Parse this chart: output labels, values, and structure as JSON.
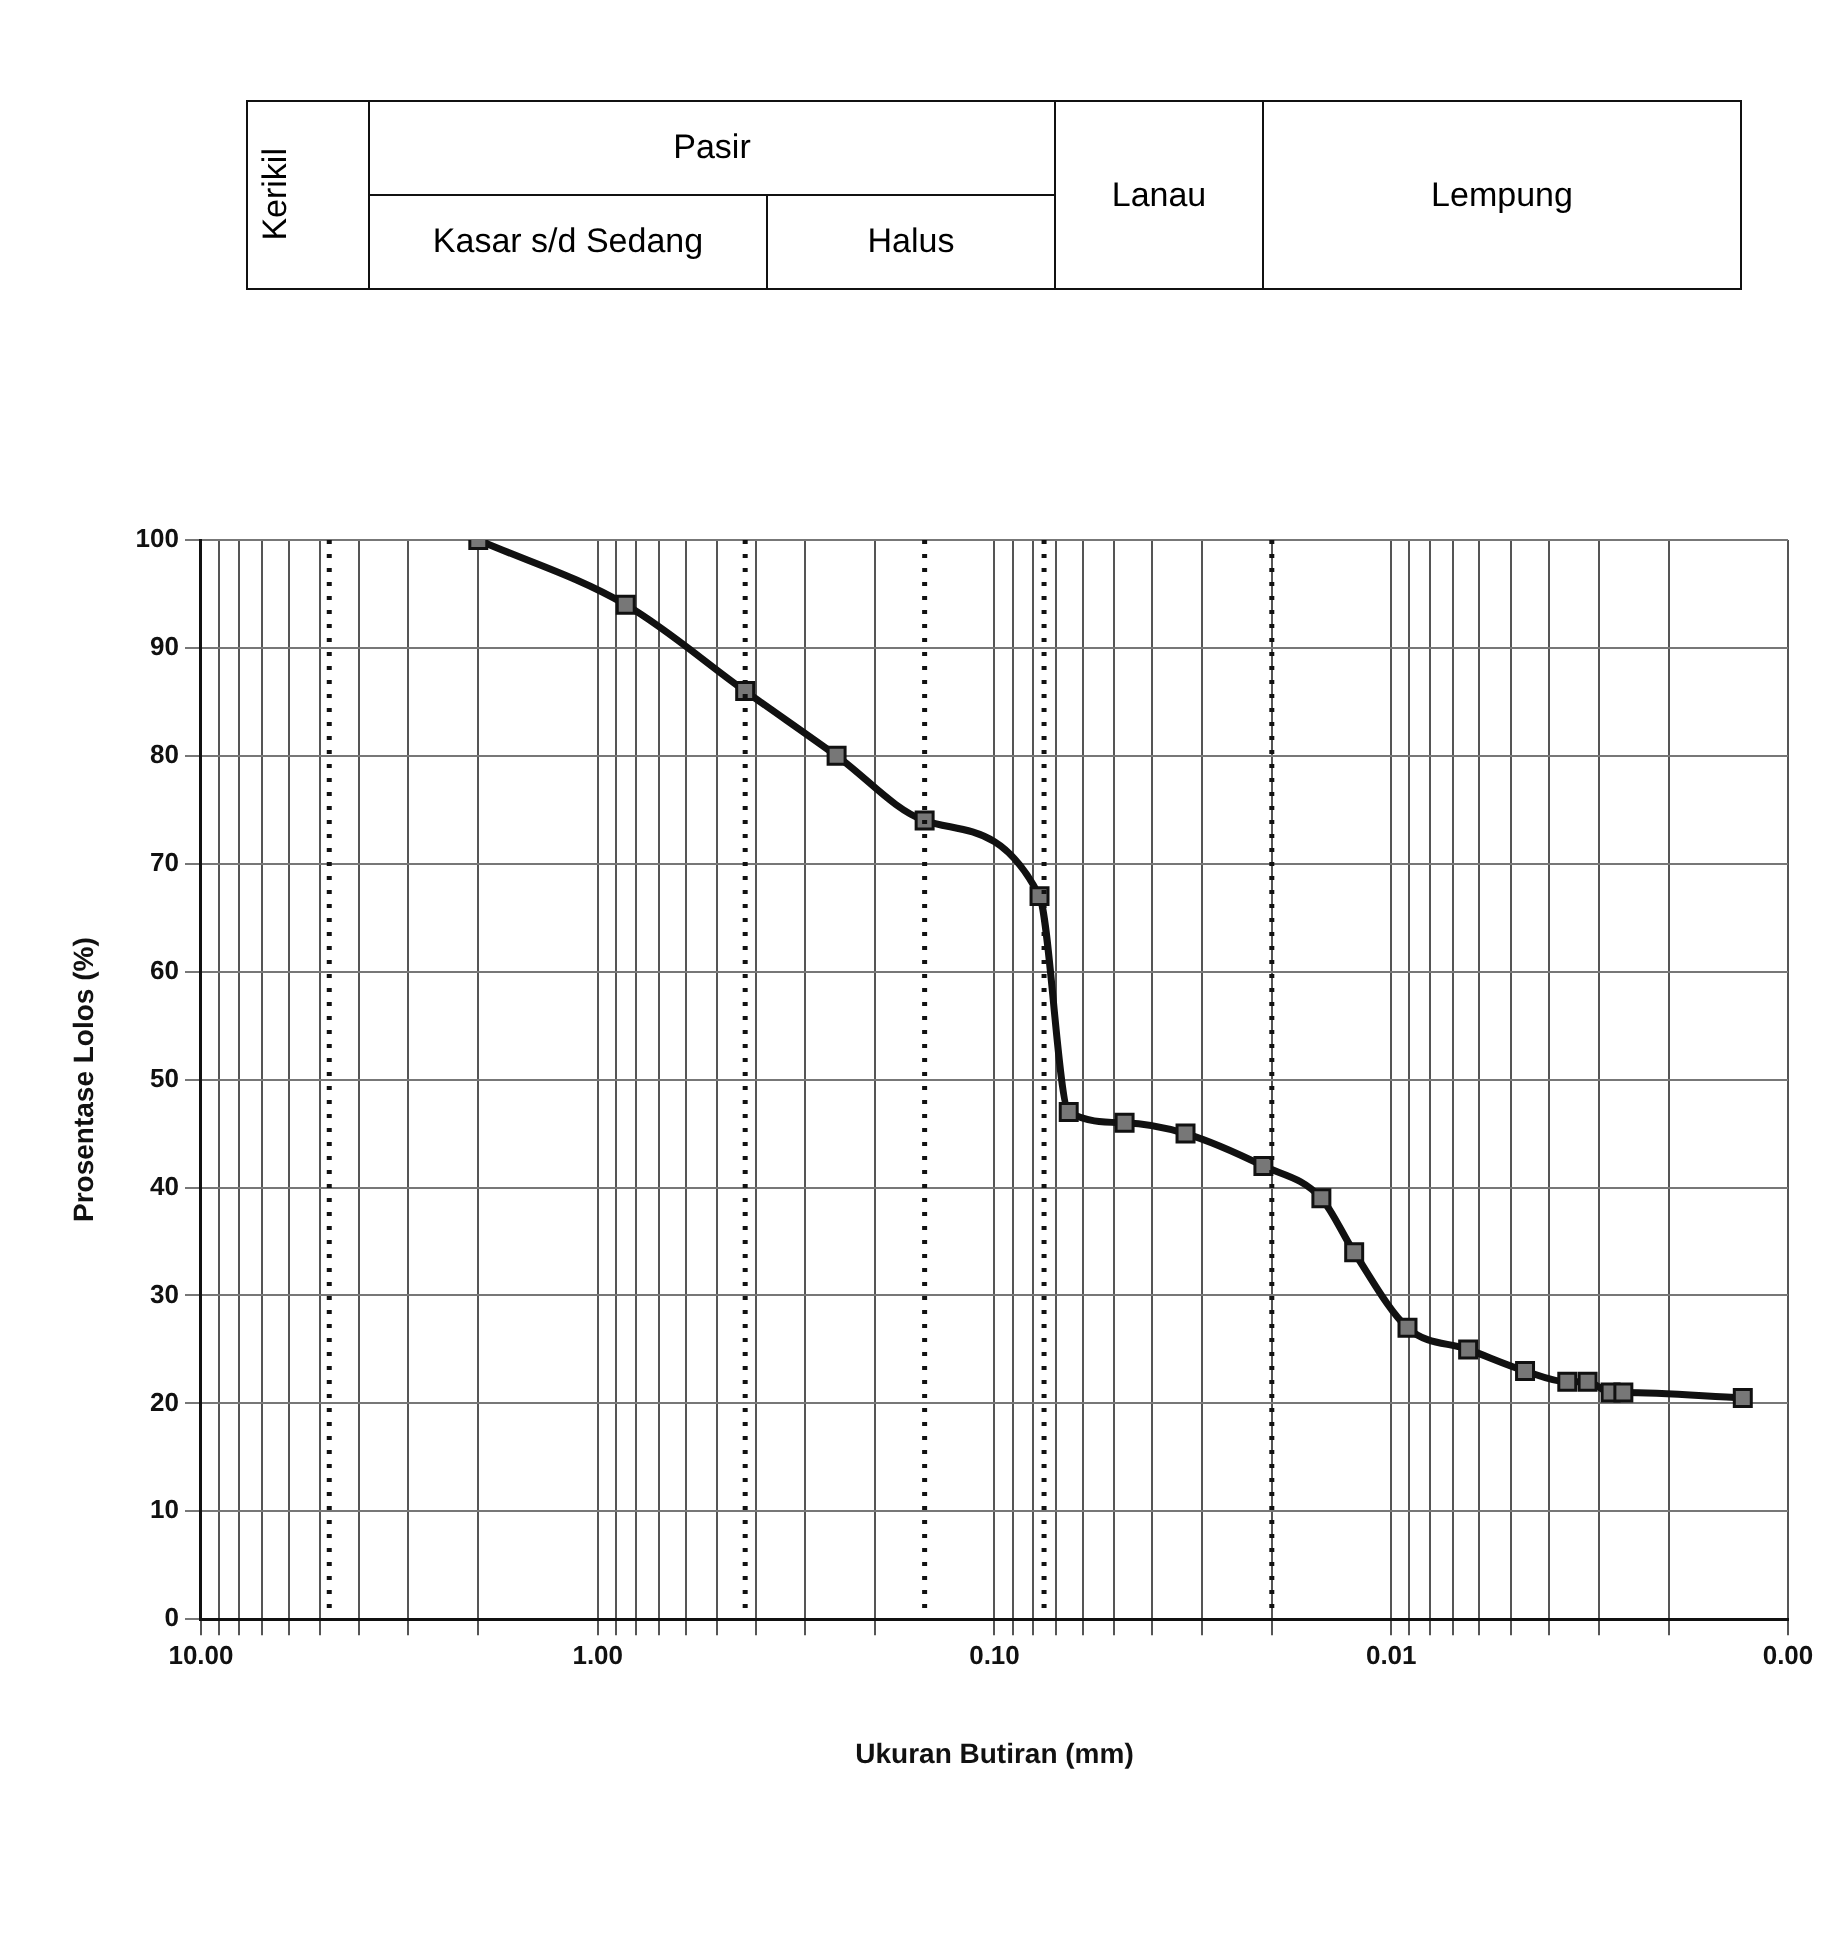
{
  "chart_data": {
    "type": "line",
    "xlabel": "Ukuran Butiran (mm)",
    "ylabel": "Prosentase Lolos (%)",
    "annotations": [
      "Kerikil",
      "Pasir",
      "Kasar s/d Sedang",
      "Halus",
      "Lanau",
      "Lempung"
    ],
    "series": [
      {
        "color": "#111111",
        "x": [
          2.0,
          0.85,
          0.425,
          0.25,
          0.15,
          0.077,
          0.065,
          0.047,
          0.033,
          0.021,
          0.015,
          0.0124,
          0.0091,
          0.0064,
          0.0046,
          0.0036,
          0.0032,
          0.0028,
          0.0026,
          0.0013
        ],
        "values": [
          100,
          94,
          86,
          80,
          74,
          67,
          47,
          46,
          45,
          42,
          39,
          34,
          27,
          25,
          23,
          22,
          22,
          21,
          21,
          20.5
        ]
      }
    ],
    "xlim": [
      10,
      0.001
    ],
    "log": "x",
    "marker": "square",
    "line_style": "solid",
    "grid": true,
    "xticks": [
      {
        "value": 10,
        "label": "10.00"
      },
      {
        "value": 9,
        "label": null
      },
      {
        "value": 8,
        "label": null
      },
      {
        "value": 7,
        "label": null
      },
      {
        "value": 6,
        "label": null
      },
      {
        "value": 5,
        "label": null
      },
      {
        "value": 4,
        "label": null
      },
      {
        "value": 3,
        "label": null
      },
      {
        "value": 2,
        "label": null
      },
      {
        "value": 1,
        "label": "1.00"
      },
      {
        "value": 0.9,
        "label": null
      },
      {
        "value": 0.8,
        "label": null
      },
      {
        "value": 0.7,
        "label": null
      },
      {
        "value": 0.6,
        "label": null
      },
      {
        "value": 0.5,
        "label": null
      },
      {
        "value": 0.4,
        "label": null
      },
      {
        "value": 0.3,
        "label": null
      },
      {
        "value": 0.2,
        "label": null
      },
      {
        "value": 0.1,
        "label": "0.10"
      },
      {
        "value": 0.09,
        "label": null
      },
      {
        "value": 0.08,
        "label": null
      },
      {
        "value": 0.07,
        "label": null
      },
      {
        "value": 0.06,
        "label": null
      },
      {
        "value": 0.05,
        "label": null
      },
      {
        "value": 0.04,
        "label": null
      },
      {
        "value": 0.03,
        "label": null
      },
      {
        "value": 0.02,
        "label": null
      },
      {
        "value": 0.01,
        "label": "0.01"
      },
      {
        "value": 0.009,
        "label": null
      },
      {
        "value": 0.008,
        "label": null
      },
      {
        "value": 0.007,
        "label": null
      },
      {
        "value": 0.006,
        "label": null
      },
      {
        "value": 0.005,
        "label": null
      },
      {
        "value": 0.004,
        "label": null
      },
      {
        "value": 0.003,
        "label": null
      },
      {
        "value": 0.002,
        "label": null
      },
      {
        "value": 0.001,
        "label": "0.00"
      }
    ],
    "ylim": [
      0,
      100
    ],
    "yticks": [
      0,
      10,
      20,
      30,
      40,
      50,
      60,
      70,
      80,
      90,
      100
    ],
    "ref_lines": [
      {
        "axis": "x",
        "value": 4.75,
        "line_style": "dotted"
      },
      {
        "axis": "x",
        "value": 0.425,
        "line_style": "dotted"
      },
      {
        "axis": "x",
        "value": 0.15,
        "line_style": "dotted"
      },
      {
        "axis": "x",
        "value": 0.075,
        "line_style": "dotted"
      },
      {
        "axis": "x",
        "value": 0.02,
        "line_style": "dotted"
      }
    ]
  }
}
